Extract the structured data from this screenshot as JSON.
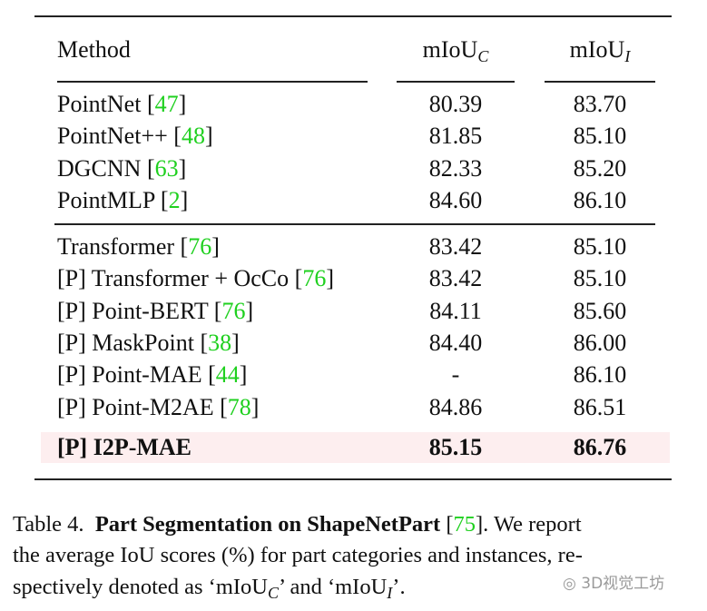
{
  "table": {
    "headers": {
      "method": "Method",
      "col_c": "mIoU",
      "col_c_sub": "C",
      "col_i": "mIoU",
      "col_i_sub": "I"
    },
    "group1": [
      {
        "method": "PointNet",
        "ref": "47",
        "c": "80.39",
        "i": "83.70"
      },
      {
        "method": "PointNet++",
        "ref": "48",
        "c": "81.85",
        "i": "85.10"
      },
      {
        "method": "DGCNN",
        "ref": "63",
        "c": "82.33",
        "i": "85.20"
      },
      {
        "method": "PointMLP",
        "ref": "2",
        "c": "84.60",
        "i": "86.10"
      }
    ],
    "group2": [
      {
        "method": "Transformer",
        "ref": "76",
        "c": "83.42",
        "i": "85.10"
      },
      {
        "method": "[P] Transformer + OcCo",
        "ref": "76",
        "c": "83.42",
        "i": "85.10"
      },
      {
        "method": "[P] Point-BERT",
        "ref": "76",
        "c": "84.11",
        "i": "85.60"
      },
      {
        "method": "[P] MaskPoint",
        "ref": "38",
        "c": "84.40",
        "i": "86.00"
      },
      {
        "method": "[P] Point-MAE",
        "ref": "44",
        "c": "-",
        "i": "86.10"
      },
      {
        "method": "[P] Point-M2AE",
        "ref": "78",
        "c": "84.86",
        "i": "86.51"
      }
    ],
    "highlight": {
      "method": "[P] I2P-MAE",
      "c": "85.15",
      "i": "86.76"
    }
  },
  "caption": {
    "label": "Table 4.",
    "bold": "Part Segmentation on ShapeNetPart",
    "ref": "75",
    "line1_rest": ".  We report",
    "line2": "the average IoU scores (%) for part categories and instances, re-",
    "line3_a": "spectively denoted as ‘mIoU",
    "line3_sub_c": "C",
    "line3_b": "’ and ‘mIoU",
    "line3_sub_i": "I",
    "line3_c": "’."
  },
  "watermark": "3D视觉工坊",
  "colors": {
    "ref": "#1fd01f",
    "highlight": "#fdeeef"
  }
}
